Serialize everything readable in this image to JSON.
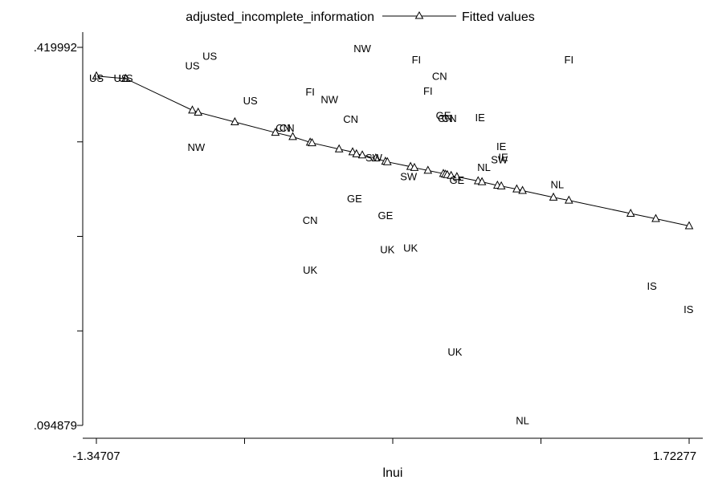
{
  "chart_data": {
    "type": "scatter",
    "title": "",
    "xlabel": "lnui",
    "ylabel": "",
    "xlim": [
      -1.34707,
      1.72277
    ],
    "ylim": [
      0.094879,
      0.419992
    ],
    "x_tick_labels": [
      "-1.34707",
      "1.72277"
    ],
    "y_tick_labels": [
      ".419992",
      ".094879"
    ],
    "legend": {
      "position": "top-center",
      "entries": [
        "adjusted_incomplete_information",
        "Fitted values"
      ]
    },
    "scatter_series": {
      "name": "adjusted_incomplete_information",
      "marker": "country-label",
      "points": [
        {
          "label": "US",
          "x": -1.347,
          "y": 0.3937
        },
        {
          "label": "US",
          "x": -1.22,
          "y": 0.3937
        },
        {
          "label": "US",
          "x": -1.195,
          "y": 0.3937
        },
        {
          "label": "US",
          "x": -0.85,
          "y": 0.4046
        },
        {
          "label": "US",
          "x": -0.76,
          "y": 0.4127
        },
        {
          "label": "US",
          "x": -0.55,
          "y": 0.3746
        },
        {
          "label": "NW",
          "x": -0.83,
          "y": 0.3343
        },
        {
          "label": "NW",
          "x": 0.03,
          "y": 0.4192
        },
        {
          "label": "NW",
          "x": -0.14,
          "y": 0.3754
        },
        {
          "label": "CN",
          "x": -0.38,
          "y": 0.3511
        },
        {
          "label": "CN",
          "x": -0.36,
          "y": 0.3511
        },
        {
          "label": "CN",
          "x": -0.24,
          "y": 0.2716
        },
        {
          "label": "CN",
          "x": -0.03,
          "y": 0.3584
        },
        {
          "label": "CN",
          "x": 0.43,
          "y": 0.3956
        },
        {
          "label": "CN",
          "x": 0.46,
          "y": 0.3592
        },
        {
          "label": "CN",
          "x": 0.48,
          "y": 0.3592
        },
        {
          "label": "FI",
          "x": -0.24,
          "y": 0.3819
        },
        {
          "label": "FI",
          "x": 0.31,
          "y": 0.4095
        },
        {
          "label": "FI",
          "x": 0.37,
          "y": 0.3827
        },
        {
          "label": "FI",
          "x": 1.1,
          "y": 0.4095
        },
        {
          "label": "GE",
          "x": -0.01,
          "y": 0.2901
        },
        {
          "label": "GE",
          "x": 0.15,
          "y": 0.2757
        },
        {
          "label": "GE",
          "x": 0.45,
          "y": 0.3617
        },
        {
          "label": "GE",
          "x": 0.52,
          "y": 0.3061
        },
        {
          "label": "SW",
          "x": 0.09,
          "y": 0.3253
        },
        {
          "label": "SW",
          "x": 0.27,
          "y": 0.3093
        },
        {
          "label": "SW",
          "x": 0.74,
          "y": 0.3237
        },
        {
          "label": "IE",
          "x": 0.64,
          "y": 0.36
        },
        {
          "label": "IE",
          "x": 0.75,
          "y": 0.3351
        },
        {
          "label": "IE",
          "x": 0.76,
          "y": 0.3259
        },
        {
          "label": "NL",
          "x": 0.66,
          "y": 0.3172
        },
        {
          "label": "NL",
          "x": 1.04,
          "y": 0.3023
        },
        {
          "label": "NL",
          "x": 0.86,
          "y": 0.0992
        },
        {
          "label": "UK",
          "x": -0.24,
          "y": 0.2287
        },
        {
          "label": "UK",
          "x": 0.16,
          "y": 0.2463
        },
        {
          "label": "UK",
          "x": 0.28,
          "y": 0.2479
        },
        {
          "label": "UK",
          "x": 0.51,
          "y": 0.1585
        },
        {
          "label": "IS",
          "x": 1.53,
          "y": 0.2149
        },
        {
          "label": "IS",
          "x": 1.72,
          "y": 0.1948
        }
      ]
    },
    "fitted_series": {
      "name": "Fitted values",
      "marker": "triangle",
      "x": [
        -1.347,
        -1.195,
        -0.85,
        -0.82,
        -0.63,
        -0.42,
        -0.33,
        -0.24,
        -0.23,
        -0.09,
        -0.02,
        0.0,
        0.03,
        0.1,
        0.15,
        0.16,
        0.28,
        0.3,
        0.37,
        0.45,
        0.46,
        0.47,
        0.49,
        0.52,
        0.63,
        0.65,
        0.73,
        0.75,
        0.83,
        0.86,
        1.02,
        1.1,
        1.42,
        1.55,
        1.72277
      ],
      "y": [
        0.3953,
        0.3931,
        0.3659,
        0.3641,
        0.3558,
        0.3467,
        0.3431,
        0.3383,
        0.3378,
        0.3325,
        0.33,
        0.3283,
        0.3273,
        0.3247,
        0.3219,
        0.3215,
        0.3174,
        0.3165,
        0.3141,
        0.3114,
        0.3108,
        0.3104,
        0.3097,
        0.3087,
        0.3051,
        0.3043,
        0.3013,
        0.3007,
        0.2981,
        0.2968,
        0.291,
        0.2884,
        0.2771,
        0.2726,
        0.2664
      ]
    }
  }
}
